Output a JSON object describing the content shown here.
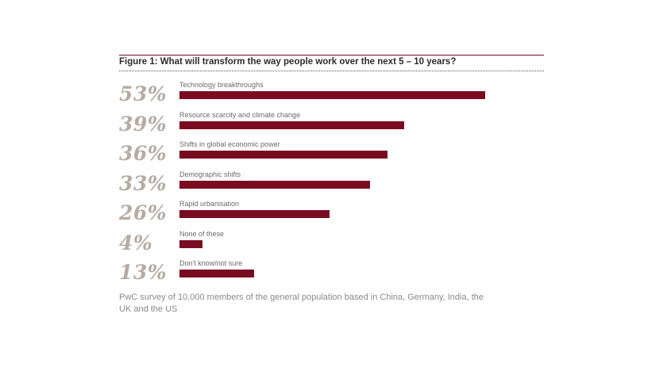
{
  "chart_data": {
    "type": "bar",
    "orientation": "horizontal",
    "title": "Figure 1: What will transform the way people work over the next 5 – 10 years?",
    "categories": [
      "Technology breakthroughs",
      "Resource scarcity and climate change",
      "Shifts in global economic power",
      "Demographic shifts",
      "Rapid urbanisation",
      "None of these",
      "Don't know/not sure"
    ],
    "values": [
      53,
      39,
      36,
      33,
      26,
      4,
      13
    ],
    "value_labels": [
      "53%",
      "39%",
      "36%",
      "33%",
      "26%",
      "4%",
      "13%"
    ],
    "unit": "%",
    "xlim": [
      0,
      100
    ],
    "grid": false,
    "bar_color": "#7a0c22",
    "label_color": "#b5aba3",
    "footnote": "PwC survey of 10,000 members of the general population based in China, Germany, India, the UK and the US"
  }
}
